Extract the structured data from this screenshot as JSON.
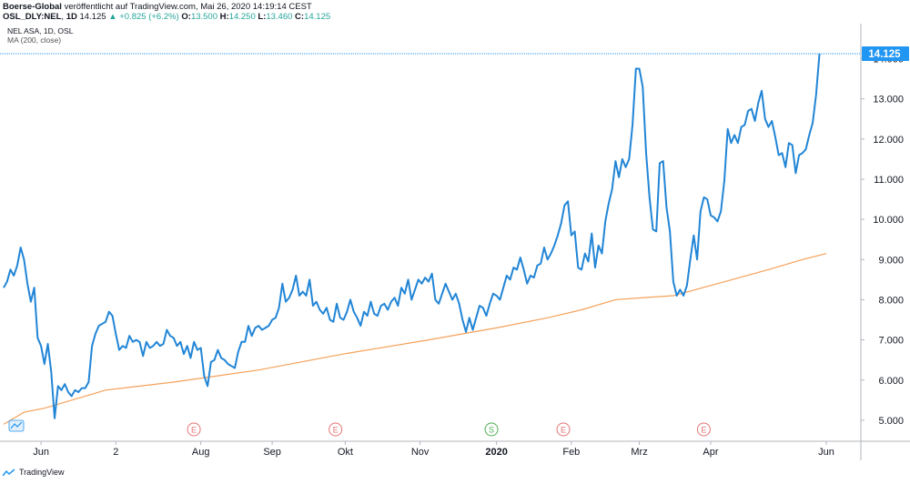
{
  "header": {
    "publisher": "Boerse-Global",
    "published_text": " veröffentlicht auf TradingView.com, Mai 26, 2020 14:19:14 CEST",
    "symbol": "OSL_DLY:NEL",
    "interval": "1D",
    "last": "14.125",
    "change": "+0.825 (+6.2%)",
    "o_label": "O:",
    "o": "13.500",
    "h_label": "H:",
    "h": "14.250",
    "l_label": "L:",
    "l": "13.460",
    "c_label": "C:",
    "c": "14.125"
  },
  "legend": {
    "main": "NEL ASA, 1D, OSL",
    "ma": "MA (200, close)"
  },
  "price_label": "14.125",
  "footer": {
    "brand": "TradingView"
  },
  "colors": {
    "price": "#2185d6",
    "ma": "#f5a15a",
    "price_badge": "#2196f3",
    "event": "#e57373",
    "split": "#4caf50"
  },
  "events": [
    {
      "label": "E",
      "kind": "earnings",
      "x_label": "Aug",
      "offset": 0.95
    },
    {
      "label": "E",
      "kind": "earnings",
      "x_label": "Okt",
      "offset": 1.35
    },
    {
      "label": "S",
      "kind": "split",
      "x_label": "2020",
      "offset": 0.7
    },
    {
      "label": "E",
      "kind": "earnings",
      "x_label": "Feb",
      "offset": 1.1
    },
    {
      "label": "E",
      "kind": "earnings",
      "x_label": "Apr",
      "offset": 0.95
    }
  ],
  "chart_data": {
    "type": "line",
    "ylim": [
      4.5,
      14.6
    ],
    "yticks": [
      "5.000",
      "6.000",
      "7.000",
      "8.000",
      "9.000",
      "10.000",
      "11.000",
      "12.000",
      "13.000",
      "14.000"
    ],
    "xtick_labels": [
      "Jun",
      "2",
      "Aug",
      "Sep",
      "Okt",
      "Nov",
      "2020",
      "Feb",
      "Mrz",
      "Apr",
      "Jun"
    ],
    "xtick_index": [
      22,
      66,
      116,
      158,
      201,
      245,
      290,
      334,
      374,
      416,
      484
    ],
    "xtick_bold": [
      "2020"
    ],
    "series": [
      {
        "name": "NEL ASA, 1D, OSL",
        "values": [
          8.3,
          8.45,
          8.75,
          8.6,
          8.85,
          9.3,
          9.0,
          8.4,
          7.95,
          8.3,
          7.05,
          6.85,
          6.4,
          6.9,
          6.2,
          5.05,
          5.85,
          5.75,
          5.9,
          5.7,
          5.6,
          5.75,
          5.7,
          5.8,
          5.8,
          5.95,
          6.85,
          7.15,
          7.35,
          7.4,
          7.45,
          7.7,
          7.6,
          7.15,
          6.75,
          6.85,
          6.8,
          7.1,
          6.95,
          7.0,
          6.95,
          6.6,
          6.95,
          6.8,
          6.85,
          6.95,
          6.85,
          6.9,
          7.25,
          7.1,
          7.05,
          6.85,
          6.95,
          6.65,
          6.85,
          6.55,
          6.95,
          6.75,
          6.8,
          6.1,
          5.85,
          6.45,
          6.5,
          6.75,
          6.55,
          6.5,
          6.4,
          6.35,
          6.3,
          6.7,
          6.95,
          6.95,
          7.35,
          7.1,
          7.3,
          7.35,
          7.25,
          7.3,
          7.35,
          7.5,
          7.55,
          7.8,
          8.4,
          7.95,
          8.05,
          8.25,
          8.6,
          8.1,
          8.2,
          8.1,
          8.5,
          7.85,
          7.95,
          7.75,
          7.65,
          7.8,
          7.5,
          7.45,
          7.9,
          7.55,
          7.5,
          7.7,
          8.0,
          7.7,
          7.55,
          7.35,
          7.7,
          7.6,
          7.95,
          7.65,
          7.6,
          7.85,
          7.9,
          7.75,
          7.95,
          8.05,
          7.85,
          8.3,
          8.15,
          8.5,
          8.0,
          8.25,
          8.5,
          8.4,
          8.55,
          8.45,
          8.65,
          8.0,
          7.9,
          8.15,
          8.4,
          8.2,
          8.0,
          8.15,
          7.9,
          7.5,
          7.2,
          7.55,
          7.25,
          7.55,
          7.85,
          7.8,
          7.6,
          7.9,
          8.15,
          8.1,
          8.0,
          8.3,
          8.6,
          8.5,
          8.8,
          8.75,
          9.05,
          8.75,
          8.4,
          8.6,
          8.55,
          8.85,
          8.9,
          9.3,
          9.0,
          9.15,
          9.35,
          9.6,
          9.9,
          10.35,
          10.45,
          9.6,
          9.7,
          8.8,
          8.75,
          9.15,
          8.95,
          9.65,
          8.8,
          9.35,
          9.15,
          9.95,
          10.4,
          10.75,
          11.45,
          11.05,
          11.5,
          11.3,
          11.5,
          12.35,
          13.75,
          13.75,
          13.3,
          11.65,
          10.55,
          9.75,
          9.7,
          11.4,
          11.45,
          10.3,
          9.7,
          8.45,
          8.1,
          8.25,
          8.1,
          8.35,
          9.0,
          9.6,
          9.0,
          10.2,
          10.55,
          10.5,
          10.1,
          10.05,
          9.95,
          10.2,
          10.95,
          12.25,
          11.9,
          12.1,
          11.9,
          12.3,
          12.35,
          12.7,
          12.75,
          12.45,
          12.9,
          13.2,
          12.5,
          12.3,
          12.45,
          12.05,
          11.6,
          11.65,
          11.3,
          11.9,
          11.85,
          11.15,
          11.6,
          11.65,
          11.75,
          12.1,
          12.4,
          13.1,
          14.125
        ]
      },
      {
        "name": "MA (200, close)",
        "values_start": 4.9,
        "values_end": 9.15,
        "keypoints": [
          [
            0,
            4.9
          ],
          [
            12,
            5.2
          ],
          [
            24,
            5.3
          ],
          [
            60,
            5.75
          ],
          [
            100,
            5.95
          ],
          [
            150,
            6.25
          ],
          [
            200,
            6.65
          ],
          [
            250,
            7.0
          ],
          [
            290,
            7.3
          ],
          [
            320,
            7.55
          ],
          [
            340,
            7.75
          ],
          [
            360,
            8.0
          ],
          [
            376,
            8.05
          ],
          [
            394,
            8.1
          ],
          [
            420,
            8.4
          ],
          [
            450,
            8.75
          ],
          [
            470,
            9.0
          ],
          [
            484,
            9.15
          ]
        ]
      }
    ]
  }
}
